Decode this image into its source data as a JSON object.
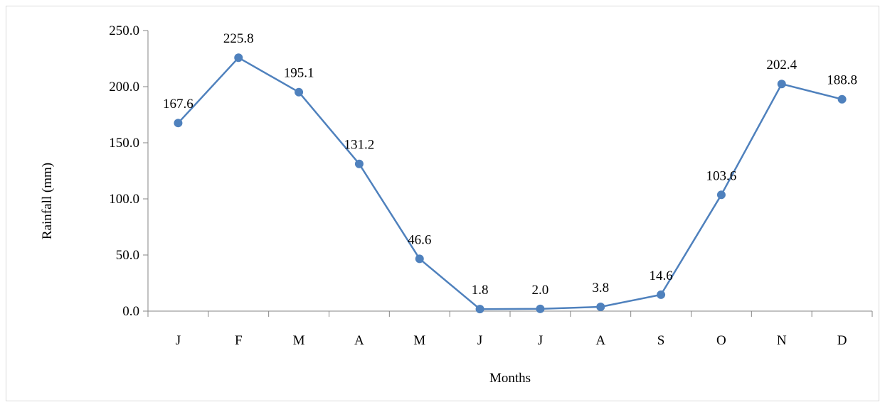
{
  "chart_data": {
    "type": "line",
    "categories": [
      "J",
      "F",
      "M",
      "A",
      "M",
      "J",
      "J",
      "A",
      "S",
      "O",
      "N",
      "D"
    ],
    "series": [
      {
        "values": [
          167.6,
          225.8,
          195.1,
          131.2,
          46.6,
          1.8,
          2.0,
          3.8,
          14.6,
          103.6,
          202.4,
          188.8
        ],
        "labels": [
          "167.6",
          "225.8",
          "195.1",
          "131.2",
          "46.6",
          "1.8",
          "2.0",
          "3.8",
          "14.6",
          "103.6",
          "202.4",
          "188.8"
        ]
      }
    ],
    "xlabel": "Months",
    "ylabel": "Rainfall (mm)",
    "ylim": [
      0,
      250
    ],
    "yticks": [
      "0.0",
      "50.0",
      "100.0",
      "150.0",
      "200.0",
      "250.0"
    ],
    "grid": false,
    "legend": "none",
    "colors": {
      "series": "#4f81bd",
      "axis": "#868686",
      "border": "#d9d9d9"
    }
  }
}
